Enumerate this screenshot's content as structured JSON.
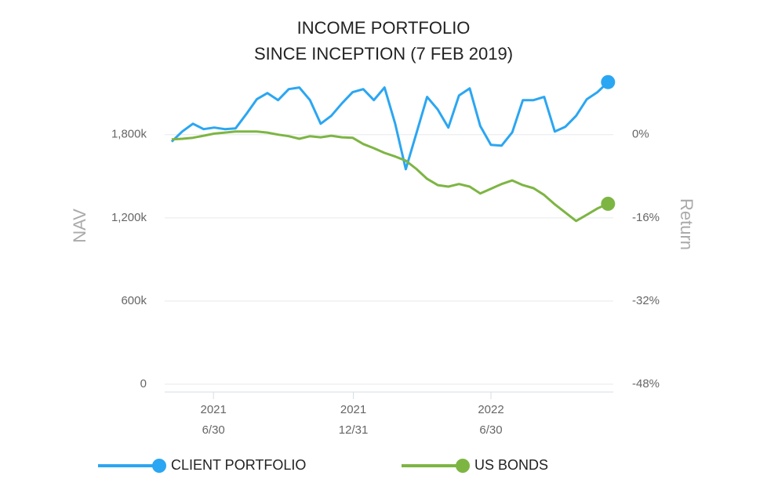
{
  "chart_data": {
    "type": "line",
    "title": "INCOME PORTFOLIO",
    "subtitle": "SINCE INCEPTION (7 FEB 2019)",
    "ylabel": "NAV",
    "y2label": "Return",
    "x": [
      "2021-05-06",
      "2021-05-20",
      "2021-06-03",
      "2021-06-17",
      "2021-07-01",
      "2021-07-15",
      "2021-07-29",
      "2021-08-12",
      "2021-08-26",
      "2021-09-09",
      "2021-09-23",
      "2021-10-07",
      "2021-10-21",
      "2021-11-04",
      "2021-11-18",
      "2021-12-02",
      "2021-12-16",
      "2021-12-30",
      "2022-01-13",
      "2022-01-27",
      "2022-02-10",
      "2022-02-24",
      "2022-03-10",
      "2022-03-24",
      "2022-04-07",
      "2022-04-21",
      "2022-05-05",
      "2022-05-19",
      "2022-06-02",
      "2022-06-16",
      "2022-06-30",
      "2022-07-14",
      "2022-07-28",
      "2022-08-11",
      "2022-08-25",
      "2022-09-08",
      "2022-09-22",
      "2022-10-06",
      "2022-10-20",
      "2022-11-03",
      "2022-11-17",
      "2022-12-01"
    ],
    "xlim": [
      "2021-05-02",
      "2022-12-11"
    ],
    "xticks": [
      {
        "value": "2021-06-30",
        "label": [
          "2021",
          "6/30"
        ]
      },
      {
        "value": "2021-12-31",
        "label": [
          "2021",
          "12/31"
        ]
      },
      {
        "value": "2022-06-30",
        "label": [
          "2022",
          "6/30"
        ]
      }
    ],
    "ylim": [
      0,
      2200000
    ],
    "yticks": [
      0,
      {
        "value": 600000,
        "label": "600k"
      },
      {
        "value": 1200000,
        "label": "1,200k"
      },
      {
        "value": 1800000,
        "label": "1,800k"
      }
    ],
    "y2lim": [
      -48,
      10.67
    ],
    "y2ticks": [
      {
        "value": -48,
        "label": "-48%"
      },
      {
        "value": -32,
        "label": "-32%"
      },
      {
        "value": -16,
        "label": "-16%"
      },
      {
        "value": 0,
        "label": "0%"
      }
    ],
    "grid": true,
    "legend": "bottom",
    "series": [
      {
        "name": "CLIENT PORTFOLIO",
        "color": "#2ba6f2",
        "axis": "y",
        "values": [
          1749000,
          1823000,
          1879000,
          1840000,
          1851000,
          1840000,
          1845000,
          1947000,
          2055000,
          2100000,
          2049000,
          2128000,
          2140000,
          2049000,
          1879000,
          1936000,
          2026000,
          2106000,
          2128000,
          2049000,
          2140000,
          1879000,
          1551000,
          1811000,
          2072000,
          1981000,
          1851000,
          2083000,
          2134000,
          1862000,
          1726000,
          1721000,
          1817000,
          2049000,
          2049000,
          2072000,
          1823000,
          1857000,
          1936000,
          2055000,
          2106000,
          2179000
        ]
      },
      {
        "name": "US BONDS",
        "color": "#7db543",
        "axis": "y2",
        "values": [
          -0.9,
          -0.8,
          -0.6,
          -0.2,
          0.2,
          0.4,
          0.6,
          0.6,
          0.6,
          0.4,
          0,
          -0.3,
          -0.8,
          -0.3,
          -0.5,
          -0.2,
          -0.5,
          -0.6,
          -1.8,
          -2.6,
          -3.5,
          -4.2,
          -5.0,
          -6.6,
          -8.5,
          -9.7,
          -10.0,
          -9.5,
          -10.0,
          -11.3,
          -10.4,
          -9.5,
          -8.8,
          -9.7,
          -10.3,
          -11.6,
          -13.4,
          -15.0,
          -16.6,
          -15.4,
          -14.2,
          -13.3
        ]
      }
    ]
  }
}
